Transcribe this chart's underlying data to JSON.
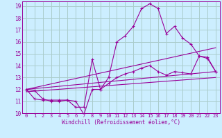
{
  "xlabel": "Windchill (Refroidissement éolien,°C)",
  "background_color": "#cceeff",
  "grid_color": "#aacccc",
  "line_color": "#990099",
  "xlim": [
    -0.5,
    23.5
  ],
  "ylim": [
    10,
    19.4
  ],
  "xticks": [
    0,
    1,
    2,
    3,
    4,
    5,
    6,
    7,
    8,
    9,
    10,
    11,
    12,
    13,
    14,
    15,
    16,
    17,
    18,
    19,
    20,
    21,
    22,
    23
  ],
  "yticks": [
    10,
    11,
    12,
    13,
    14,
    15,
    16,
    17,
    18,
    19
  ],
  "series1_x": [
    0,
    1,
    2,
    3,
    4,
    5,
    6,
    7,
    8,
    9,
    10,
    11,
    12,
    13,
    14,
    15,
    16,
    17,
    18,
    19,
    20,
    21,
    22,
    23
  ],
  "series1_y": [
    12.0,
    11.9,
    11.2,
    11.0,
    11.0,
    11.1,
    11.0,
    9.9,
    12.0,
    12.0,
    13.0,
    16.0,
    16.5,
    17.3,
    18.8,
    19.2,
    18.8,
    16.7,
    17.3,
    16.3,
    15.8,
    14.8,
    14.7,
    13.5
  ],
  "series2_x": [
    0,
    1,
    2,
    3,
    4,
    5,
    6,
    7,
    8,
    9,
    10,
    11,
    12,
    13,
    14,
    15,
    16,
    17,
    18,
    19,
    20,
    21,
    22,
    23
  ],
  "series2_y": [
    12.0,
    11.2,
    11.1,
    11.1,
    11.1,
    11.1,
    10.5,
    10.5,
    14.5,
    12.0,
    12.5,
    13.0,
    13.3,
    13.5,
    13.8,
    14.0,
    13.5,
    13.2,
    13.5,
    13.4,
    13.3,
    14.8,
    14.6,
    13.5
  ],
  "series3_x": [
    0,
    23
  ],
  "series3_y": [
    12.0,
    15.5
  ],
  "series4_x": [
    0,
    23
  ],
  "series4_y": [
    12.0,
    13.5
  ],
  "series5_x": [
    0,
    23
  ],
  "series5_y": [
    11.8,
    13.0
  ]
}
